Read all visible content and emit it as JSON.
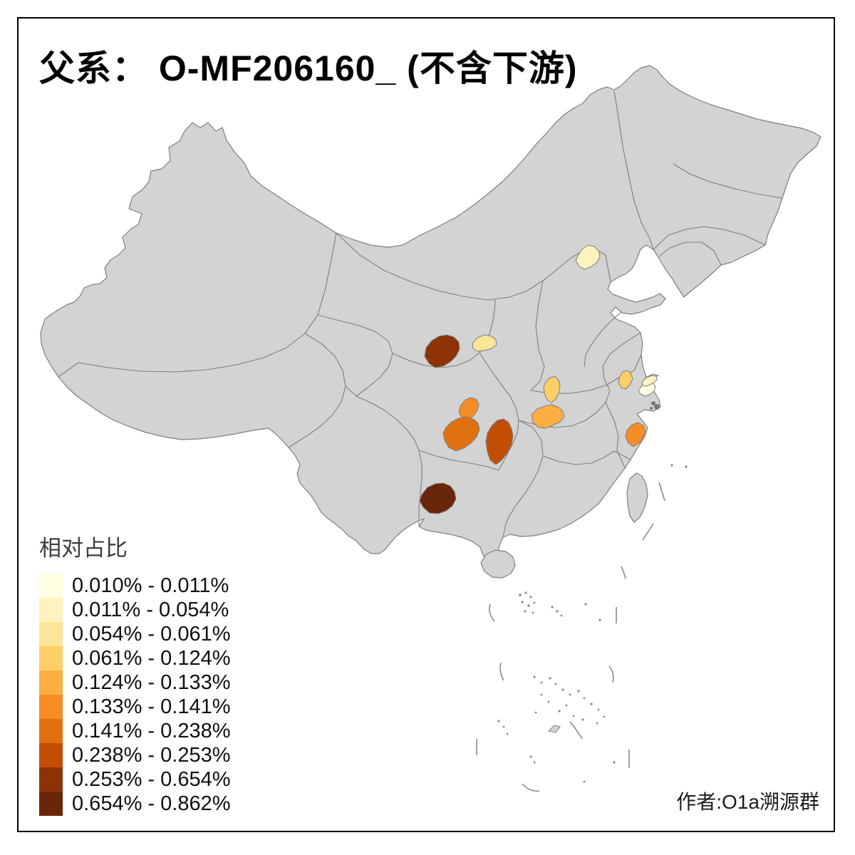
{
  "title": "父系： O-MF206160_ (不含下游)",
  "credit": "作者:O1a溯源群",
  "legend": {
    "title": "相对占比",
    "classes": [
      {
        "label": "0.010% - 0.011%",
        "color": "#FFFEE3"
      },
      {
        "label": "0.011% - 0.054%",
        "color": "#FEF3BE"
      },
      {
        "label": "0.054% - 0.061%",
        "color": "#FDE598"
      },
      {
        "label": "0.061% - 0.124%",
        "color": "#FDCF66"
      },
      {
        "label": "0.124% - 0.133%",
        "color": "#FCAE41"
      },
      {
        "label": "0.133% - 0.141%",
        "color": "#F68C26"
      },
      {
        "label": "0.141% - 0.238%",
        "color": "#E17010"
      },
      {
        "label": "0.238% - 0.253%",
        "color": "#C24E04"
      },
      {
        "label": "0.253% - 0.654%",
        "color": "#8E3305"
      },
      {
        "label": "0.654% - 0.862%",
        "color": "#6A2609"
      }
    ]
  },
  "map": {
    "land_color": "#d3d3d3",
    "boundary_color": "#7e7e7e",
    "sea_color": "#ffffff",
    "regions": [
      {
        "id": "r1",
        "class_index": 0
      },
      {
        "id": "r2",
        "class_index": 1
      },
      {
        "id": "r3",
        "class_index": 1
      },
      {
        "id": "r4",
        "class_index": 2
      },
      {
        "id": "r5",
        "class_index": 3
      },
      {
        "id": "r6",
        "class_index": 3
      },
      {
        "id": "r7",
        "class_index": 4
      },
      {
        "id": "r8",
        "class_index": 5
      },
      {
        "id": "r9",
        "class_index": 5
      },
      {
        "id": "r10",
        "class_index": 6
      },
      {
        "id": "r11",
        "class_index": 7
      },
      {
        "id": "r12",
        "class_index": 8
      },
      {
        "id": "r13",
        "class_index": 9
      }
    ]
  }
}
